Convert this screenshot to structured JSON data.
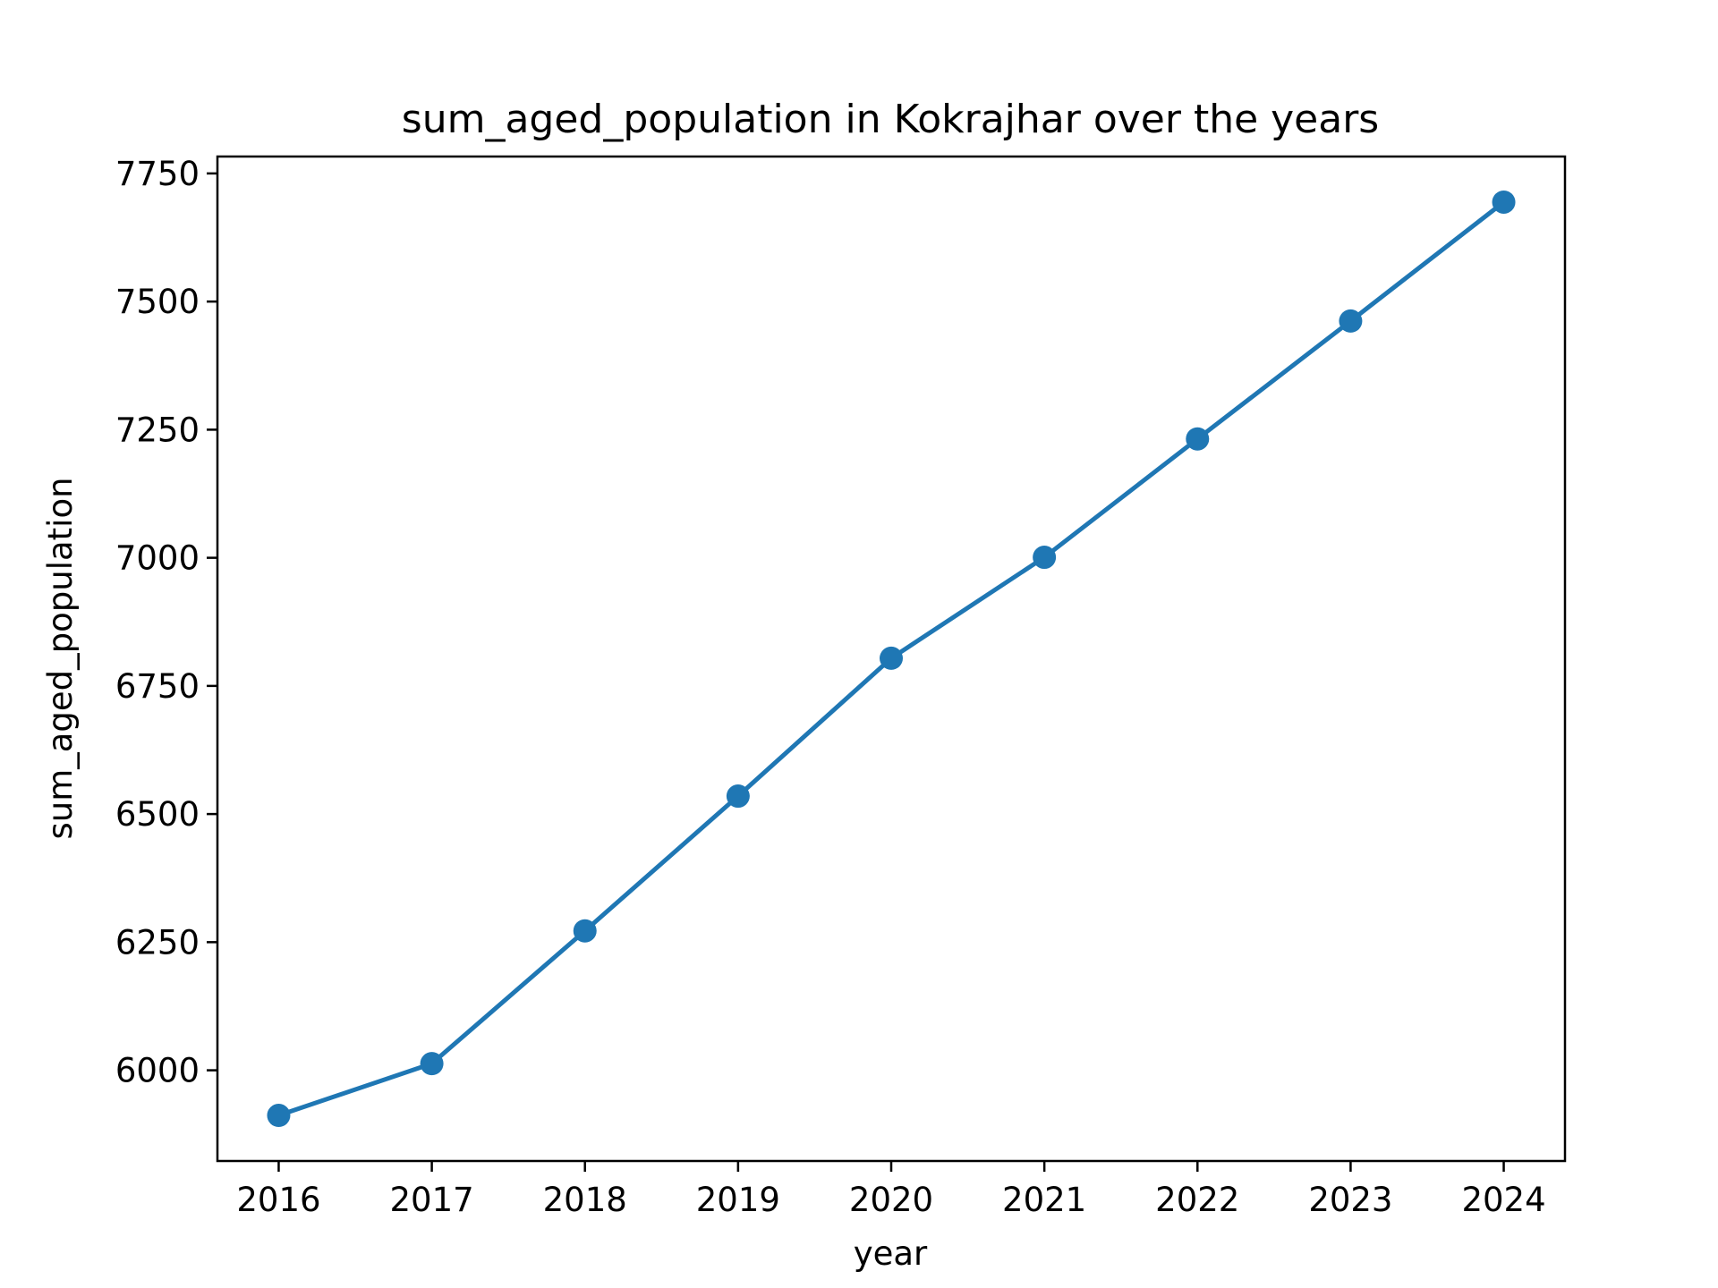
{
  "chart_data": {
    "type": "line",
    "title": "sum_aged_population in Kokrajhar over the years",
    "xlabel": "year",
    "ylabel": "sum_aged_population",
    "x": [
      2016,
      2017,
      2018,
      2019,
      2020,
      2021,
      2022,
      2023,
      2024
    ],
    "series": [
      {
        "values": [
          5912,
          6013,
          6272,
          6535,
          6804,
          7001,
          7232,
          7462,
          7694
        ],
        "color": "#1f77b4",
        "marker": "circle"
      }
    ],
    "xlim": [
      2015.6,
      2024.4
    ],
    "ylim": [
      5823,
      7783
    ],
    "xticks": [
      2016,
      2017,
      2018,
      2019,
      2020,
      2021,
      2022,
      2023,
      2024
    ],
    "yticks": [
      6000,
      6250,
      6500,
      6750,
      7000,
      7250,
      7500,
      7750
    ],
    "grid": false,
    "legend": "none"
  }
}
